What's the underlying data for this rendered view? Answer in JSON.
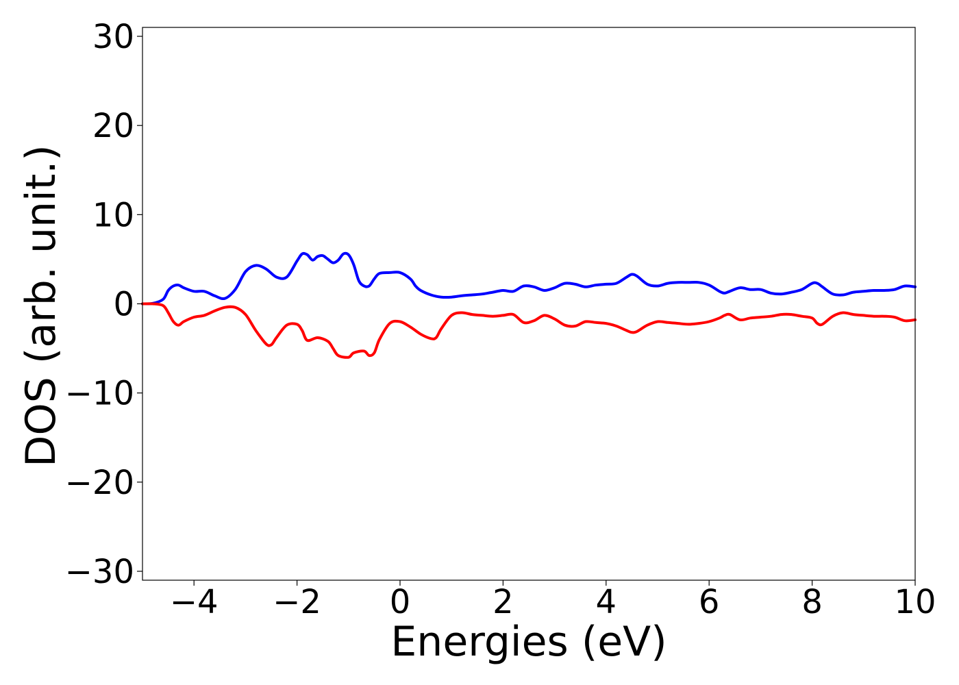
{
  "chart_data": {
    "type": "line",
    "xlabel": "Energies (eV)",
    "ylabel": "DOS (arb. unit.)",
    "xlim": [
      -5,
      10
    ],
    "ylim": [
      -31,
      31
    ],
    "xticks": [
      -4,
      -2,
      0,
      2,
      4,
      6,
      8,
      10
    ],
    "yticks": [
      -30,
      -20,
      -10,
      0,
      10,
      20,
      30
    ],
    "grid": false,
    "series": [
      {
        "color": "#0000ff",
        "x": [
          -5.0,
          -4.8,
          -4.6,
          -4.5,
          -4.4,
          -4.3,
          -4.2,
          -4.0,
          -3.8,
          -3.6,
          -3.4,
          -3.2,
          -3.0,
          -2.8,
          -2.6,
          -2.4,
          -2.2,
          -2.0,
          -1.9,
          -1.8,
          -1.7,
          -1.6,
          -1.5,
          -1.4,
          -1.3,
          -1.2,
          -1.1,
          -1.0,
          -0.9,
          -0.8,
          -0.7,
          -0.6,
          -0.5,
          -0.4,
          -0.2,
          0.0,
          0.2,
          0.3,
          0.4,
          0.6,
          0.8,
          1.0,
          1.2,
          1.4,
          1.6,
          1.8,
          2.0,
          2.2,
          2.4,
          2.6,
          2.8,
          3.0,
          3.2,
          3.4,
          3.6,
          3.8,
          4.0,
          4.2,
          4.4,
          4.5,
          4.6,
          4.8,
          5.0,
          5.2,
          5.4,
          5.6,
          5.8,
          6.0,
          6.2,
          6.3,
          6.4,
          6.6,
          6.8,
          7.0,
          7.2,
          7.4,
          7.6,
          7.8,
          8.0,
          8.1,
          8.2,
          8.4,
          8.6,
          8.8,
          9.0,
          9.2,
          9.4,
          9.6,
          9.8,
          10.0
        ],
        "y": [
          0.0,
          0.05,
          0.5,
          1.5,
          2.0,
          2.1,
          1.8,
          1.4,
          1.4,
          0.9,
          0.6,
          1.6,
          3.6,
          4.3,
          3.9,
          3.0,
          3.0,
          4.8,
          5.6,
          5.5,
          4.9,
          5.3,
          5.4,
          5.0,
          4.6,
          4.9,
          5.6,
          5.5,
          4.4,
          2.6,
          2.0,
          2.0,
          2.8,
          3.4,
          3.5,
          3.5,
          2.8,
          2.0,
          1.5,
          1.0,
          0.75,
          0.75,
          0.9,
          1.0,
          1.1,
          1.3,
          1.5,
          1.4,
          2.0,
          1.9,
          1.5,
          1.8,
          2.3,
          2.2,
          1.9,
          2.1,
          2.2,
          2.3,
          3.0,
          3.3,
          3.1,
          2.2,
          2.0,
          2.3,
          2.4,
          2.4,
          2.4,
          2.1,
          1.4,
          1.2,
          1.4,
          1.8,
          1.6,
          1.6,
          1.2,
          1.1,
          1.3,
          1.6,
          2.3,
          2.3,
          1.9,
          1.1,
          1.0,
          1.3,
          1.4,
          1.5,
          1.5,
          1.6,
          2.0,
          1.9
        ]
      },
      {
        "color": "#ff0000",
        "x": [
          -5.0,
          -4.8,
          -4.6,
          -4.5,
          -4.4,
          -4.3,
          -4.2,
          -4.0,
          -3.8,
          -3.6,
          -3.4,
          -3.2,
          -3.0,
          -2.8,
          -2.6,
          -2.5,
          -2.4,
          -2.2,
          -2.0,
          -1.9,
          -1.8,
          -1.6,
          -1.4,
          -1.3,
          -1.2,
          -1.0,
          -0.9,
          -0.7,
          -0.6,
          -0.5,
          -0.4,
          -0.2,
          0.0,
          0.2,
          0.4,
          0.6,
          0.7,
          0.8,
          1.0,
          1.2,
          1.4,
          1.6,
          1.8,
          2.0,
          2.2,
          2.4,
          2.6,
          2.8,
          3.0,
          3.2,
          3.4,
          3.6,
          3.8,
          4.0,
          4.2,
          4.4,
          4.5,
          4.6,
          4.8,
          5.0,
          5.2,
          5.4,
          5.6,
          5.8,
          6.0,
          6.2,
          6.3,
          6.4,
          6.6,
          6.8,
          7.0,
          7.2,
          7.4,
          7.6,
          7.8,
          8.0,
          8.1,
          8.2,
          8.4,
          8.6,
          8.8,
          9.0,
          9.2,
          9.4,
          9.6,
          9.8,
          10.0
        ],
        "y": [
          0.0,
          0.0,
          -0.2,
          -1.0,
          -2.0,
          -2.4,
          -2.0,
          -1.5,
          -1.3,
          -0.8,
          -0.4,
          -0.4,
          -1.2,
          -3.0,
          -4.5,
          -4.6,
          -3.8,
          -2.4,
          -2.3,
          -3.0,
          -4.1,
          -3.8,
          -4.2,
          -5.0,
          -5.8,
          -6.0,
          -5.5,
          -5.3,
          -5.8,
          -5.5,
          -4.0,
          -2.2,
          -2.0,
          -2.6,
          -3.4,
          -3.9,
          -3.8,
          -2.8,
          -1.3,
          -1.0,
          -1.2,
          -1.3,
          -1.4,
          -1.3,
          -1.2,
          -2.1,
          -1.9,
          -1.3,
          -1.7,
          -2.4,
          -2.5,
          -2.0,
          -2.1,
          -2.2,
          -2.5,
          -3.0,
          -3.2,
          -3.1,
          -2.4,
          -2.0,
          -2.1,
          -2.2,
          -2.3,
          -2.2,
          -2.0,
          -1.6,
          -1.3,
          -1.2,
          -1.8,
          -1.6,
          -1.5,
          -1.4,
          -1.2,
          -1.2,
          -1.4,
          -1.6,
          -2.2,
          -2.3,
          -1.4,
          -1.0,
          -1.2,
          -1.3,
          -1.4,
          -1.4,
          -1.5,
          -1.9,
          -1.8
        ]
      }
    ]
  }
}
